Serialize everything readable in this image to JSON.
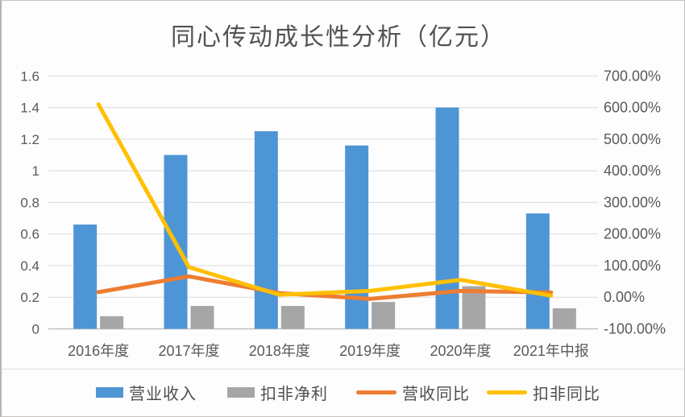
{
  "page": {
    "title": "同心传动成长性分析（亿元）"
  },
  "chart_data": {
    "type": "bar",
    "subtype": "combo-bar-line-dual-axis",
    "title": "同心传动成长性分析（亿元）",
    "categories": [
      "2016年度",
      "2017年度",
      "2018年度",
      "2019年度",
      "2020年度",
      "2021年中报"
    ],
    "series": [
      {
        "id": "revenue",
        "name": "营业收入",
        "kind": "bar",
        "axis": "left",
        "color": "#4E95D6",
        "values": [
          0.66,
          1.1,
          1.25,
          1.16,
          1.4,
          0.73
        ]
      },
      {
        "id": "deducted-net-profit",
        "name": "扣非净利",
        "kind": "bar",
        "axis": "left",
        "color": "#A6A6A6",
        "values": [
          0.08,
          0.145,
          0.145,
          0.17,
          0.27,
          0.13
        ]
      },
      {
        "id": "revenue-yoy",
        "name": "营收同比",
        "kind": "line",
        "axis": "right",
        "color": "#ED7D31",
        "values": [
          16,
          66,
          13,
          -5,
          20,
          15
        ]
      },
      {
        "id": "deducted-yoy",
        "name": "扣非同比",
        "kind": "line",
        "axis": "right",
        "color": "#FFC000",
        "values": [
          610,
          95,
          8,
          20,
          55,
          5
        ]
      }
    ],
    "left_axis": {
      "min": 0,
      "max": 1.6,
      "step": 0.2,
      "tick_labels": [
        "0",
        "0.2",
        "0.4",
        "0.6",
        "0.8",
        "1",
        "1.2",
        "1.4",
        "1.6"
      ]
    },
    "right_axis": {
      "min": -100,
      "max": 700,
      "step": 100,
      "tick_labels": [
        "-100.00%",
        "0.00%",
        "100.00%",
        "200.00%",
        "300.00%",
        "400.00%",
        "500.00%",
        "600.00%",
        "700.00%"
      ]
    },
    "grid": true,
    "legend_position": "bottom",
    "colors": {
      "gridline": "#DBDBDB",
      "axis_line": "#BFBFBF",
      "tick_text": "#595959",
      "title_text": "#525252",
      "background": "#FFFFFF"
    }
  }
}
